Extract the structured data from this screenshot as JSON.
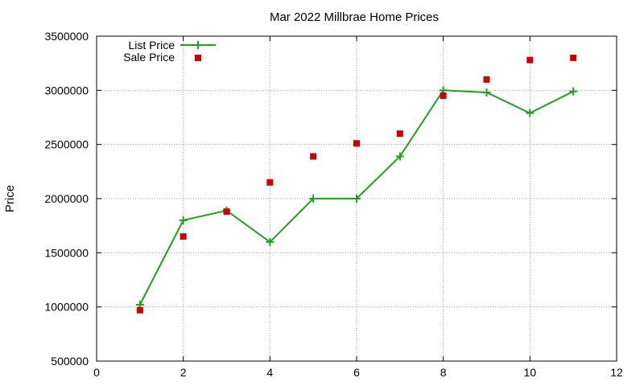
{
  "chart_data": {
    "type": "line",
    "title": "Mar 2022 Millbrae Home Prices",
    "xlabel": "",
    "ylabel": "Price",
    "xlim": [
      0,
      12
    ],
    "ylim": [
      500000,
      3500000
    ],
    "x_ticks": [
      0,
      2,
      4,
      6,
      8,
      10,
      12
    ],
    "y_ticks": [
      500000,
      1000000,
      1500000,
      2000000,
      2500000,
      3000000,
      3500000
    ],
    "grid": true,
    "legend_position": "top-left",
    "series": [
      {
        "name": "List Price",
        "style": "line+cross",
        "color": "#1fa31f",
        "x": [
          1,
          2,
          3,
          4,
          5,
          6,
          7,
          8,
          9,
          10,
          11
        ],
        "y": [
          1020000,
          1800000,
          1890000,
          1600000,
          2000000,
          2000000,
          2390000,
          3000000,
          2980000,
          2790000,
          2990000
        ]
      },
      {
        "name": "Sale Price",
        "style": "square",
        "color": "#cc0000",
        "x": [
          1,
          2,
          3,
          4,
          5,
          6,
          7,
          8,
          9,
          10,
          11
        ],
        "y": [
          970000,
          1650000,
          1880000,
          2150000,
          2390000,
          2510000,
          2600000,
          2950000,
          3100000,
          3280000,
          3300000
        ]
      }
    ]
  }
}
